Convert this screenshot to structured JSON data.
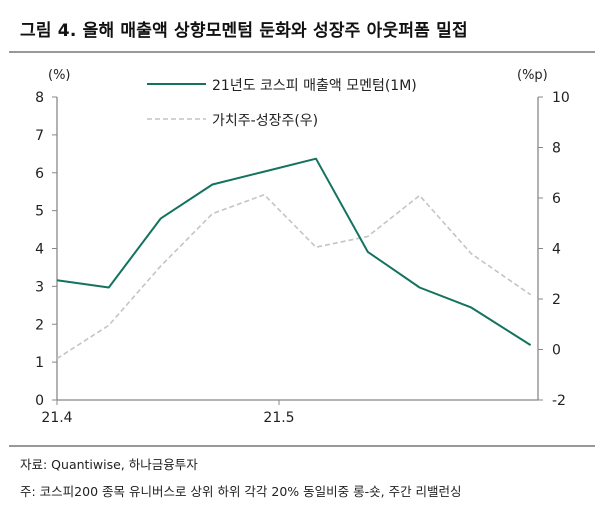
{
  "title": "그림 4. 올해 매출액 상향모멘텀 둔화와 성장주 아웃퍼폼 밀접",
  "source": "자료: Quantiwise, 하나금융투자",
  "footnote": "주: 코스피200 종목 유니버스로 상위 하위 각각 20% 동일비중 롱-숏, 주간 리밸런싱",
  "chart_data": {
    "type": "line",
    "left_axis": {
      "unit_label": "(%)",
      "range": [
        0,
        8
      ],
      "ticks": [
        "0",
        "1",
        "2",
        "3",
        "4",
        "5",
        "6",
        "7",
        "8"
      ]
    },
    "right_axis": {
      "unit_label": "(%p)",
      "range": [
        -2,
        10
      ],
      "ticks": [
        "-2",
        "0",
        "2",
        "4",
        "6",
        "8",
        "10"
      ]
    },
    "x": [
      "2021-04-01",
      "2021-04-08",
      "2021-04-15",
      "2021-04-22",
      "2021-04-29",
      "2021-05-06",
      "2021-05-13",
      "2021-05-20",
      "2021-05-27",
      "2021-06-04"
    ],
    "x_range": [
      "2021-04-01",
      "2021-06-05"
    ],
    "x_ticks": [
      {
        "label": "21.4",
        "date": "2021-04-01"
      },
      {
        "label": "21.5",
        "date": "2021-05-01"
      }
    ],
    "grid": false,
    "legend_position": "top-center",
    "series": [
      {
        "name": "21년도 코스피 매출액 모멘텀(1M)",
        "axis": "left",
        "style": "solid",
        "color": "#13735f",
        "values": [
          3.16,
          2.97,
          4.79,
          5.69,
          6.03,
          6.37,
          3.91,
          2.97,
          2.44,
          1.45
        ]
      },
      {
        "name": "가치주-성장주(우)",
        "axis": "right",
        "style": "dashed",
        "color": "#c4c4c4",
        "values": [
          -0.36,
          0.96,
          3.3,
          5.38,
          6.13,
          4.05,
          4.48,
          6.1,
          3.79,
          2.17
        ]
      }
    ]
  }
}
